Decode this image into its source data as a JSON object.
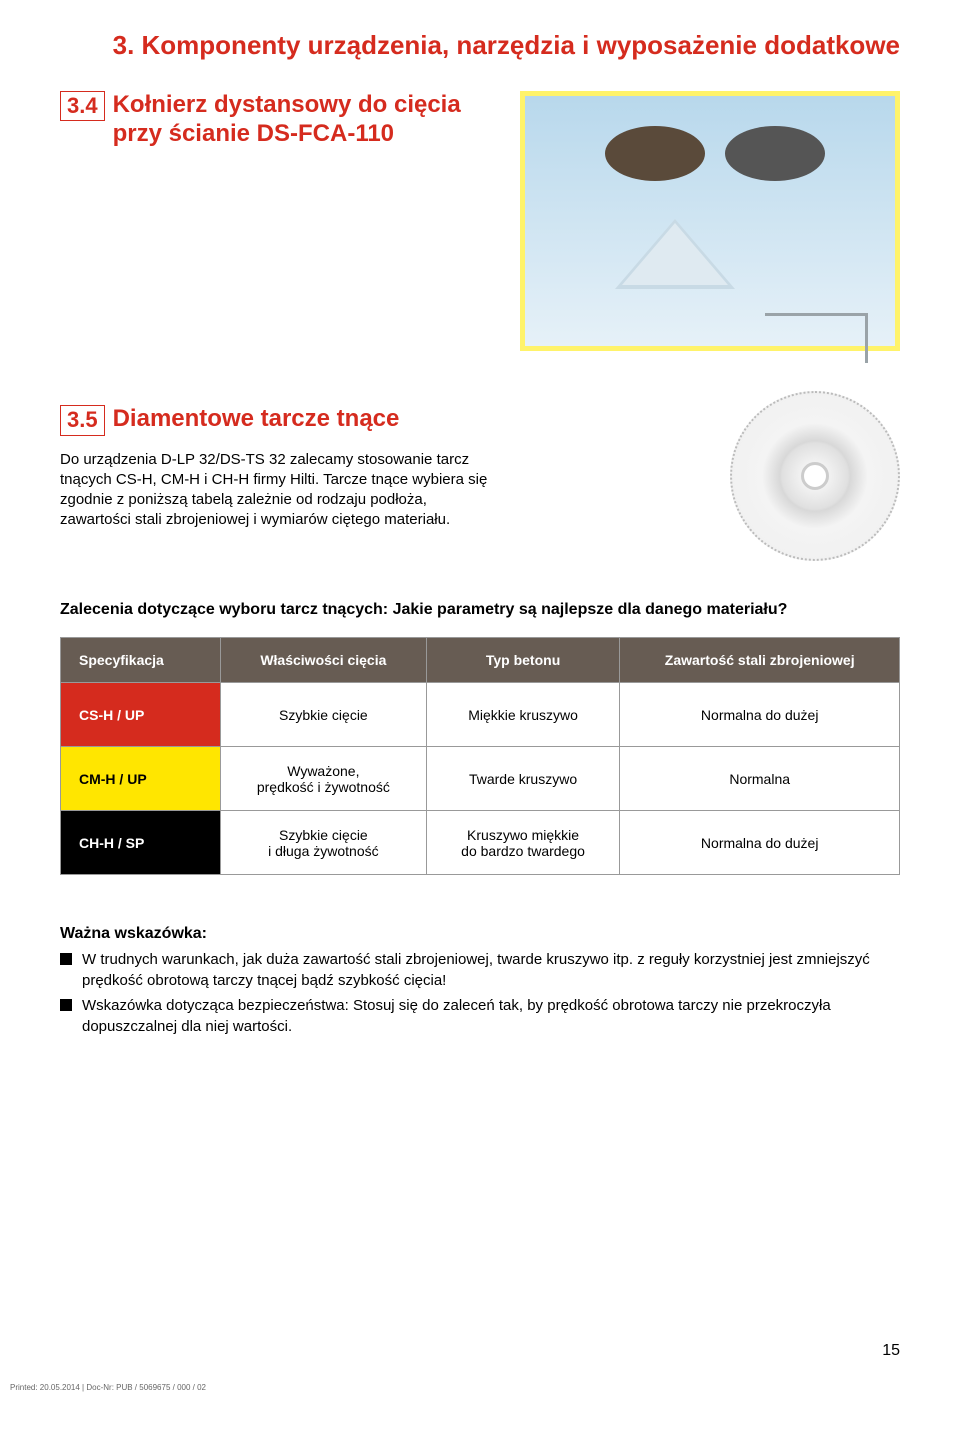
{
  "chapter_title": "3. Komponenty urządzenia, narzędzia i wyposażenie dodatkowe",
  "section34": {
    "num": "3.4",
    "title": "Kołnierz dystansowy do cięcia przy ścianie DS-FCA-110"
  },
  "section35": {
    "num": "3.5",
    "title": "Diamentowe tarcze tnące",
    "para": "Do urządzenia D-LP 32/DS-TS 32 zalecamy stosowanie tarcz tnących CS-H, CM-H i CH-H firmy Hilti. Tarcze tnące wybiera się zgodnie z poniższą tabelą zależnie od rodzaju podłoża, zawartości stali zbrojeniowej i wymiarów ciętego materiału.",
    "question": "Zalecenia dotyczące wyboru tarcz tnących: Jakie parametry są najlepsze dla danego materiału?"
  },
  "table": {
    "headers": [
      "Specyfikacja",
      "Właściwości cięcia",
      "Typ betonu",
      "Zawartość stali zbrojeniowej"
    ],
    "rows": [
      {
        "label": "CS-H / UP",
        "cells": [
          "Szybkie cięcie",
          "Miękkie kruszywo",
          "Normalna do dużej"
        ]
      },
      {
        "label": "CM-H / UP",
        "cells": [
          "Wyważone,\nprędkość i żywotność",
          "Twarde kruszywo",
          "Normalna"
        ]
      },
      {
        "label": "CH-H / SP",
        "cells": [
          "Szybkie cięcie\ni długa żywotność",
          "Kruszywo miękkie\ndo bardzo twardego",
          "Normalna do dużej"
        ]
      }
    ]
  },
  "note": {
    "title": "Ważna wskazówka:",
    "items": [
      "W trudnych warunkach, jak duża zawartość stali zbrojeniowej, twarde kruszywo itp. z reguły korzystniej jest zmniejszyć prędkość obrotową tarczy tnącej bądź szybkość cięcia!",
      "Wskazówka dotycząca bezpieczeństwa: Stosuj się do zaleceń tak, by prędkość obrotowa tarczy nie przekroczyła dopuszczalnej dla niej wartości."
    ]
  },
  "page_number": "15",
  "footer": "Printed: 20.05.2014 | Doc-Nr: PUB / 5069675 / 000 / 02",
  "colors": {
    "accent_red": "#d52b1e",
    "header_brown": "#675c53",
    "row_yellow": "#ffe600",
    "row_black": "#000000",
    "image_border": "#fff36a"
  }
}
